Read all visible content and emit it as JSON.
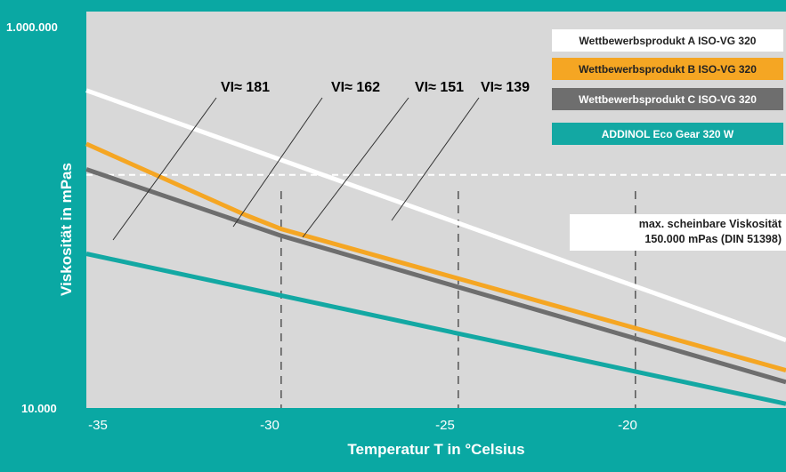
{
  "chart_data": {
    "type": "line",
    "xlabel": "Temperatur T in °Celsius",
    "ylabel": "Viskosität in mPas",
    "y_scale": "log",
    "xlim": [
      -35.5,
      -15.75
    ],
    "ylim": [
      10000,
      1000000
    ],
    "x_ticks": [
      "-35",
      "-30",
      "-25",
      "-20"
    ],
    "y_tick_labels": {
      "top": "1.000.000",
      "bottom": "10.000"
    },
    "series": [
      {
        "name": "Wettbewerbsprodukt A   ISO-VG 320",
        "color": "#ffffff",
        "x": [
          -35.5,
          -15.75
        ],
        "y": [
          400000,
          22000
        ]
      },
      {
        "name": "Wettbewerbsprodukt B   ISO-VG 320",
        "color": "#f5a623",
        "x": [
          -35.5,
          -31,
          -30,
          -15.75
        ],
        "y": [
          215000,
          94000,
          80000,
          15500
        ]
      },
      {
        "name": "Wettbewerbsprodukt C   ISO-VG 320",
        "color": "#6e6e6e",
        "x": [
          -35.5,
          -30,
          -15.75
        ],
        "y": [
          160000,
          74000,
          13500
        ]
      },
      {
        "name": "ADDINOL Eco Gear 320 W",
        "color": "#13a8a3",
        "x": [
          -35.5,
          -15.75
        ],
        "y": [
          60000,
          10500
        ]
      }
    ],
    "vi_labels": [
      {
        "text": "VI≈ 181",
        "color": "#13a8a3"
      },
      {
        "text": "VI≈ 162",
        "color": "#6e6e6e"
      },
      {
        "text": "VI≈ 151",
        "color": "#f5a623"
      },
      {
        "text": "VI≈ 139",
        "color": "#ffffff"
      }
    ],
    "reference_line": {
      "y": 150000,
      "label_line1": "max. scheinbare Viskosität",
      "label_line2": "150.000 mPas (DIN 51398)"
    },
    "grid": "dashed vertical at x ticks"
  }
}
